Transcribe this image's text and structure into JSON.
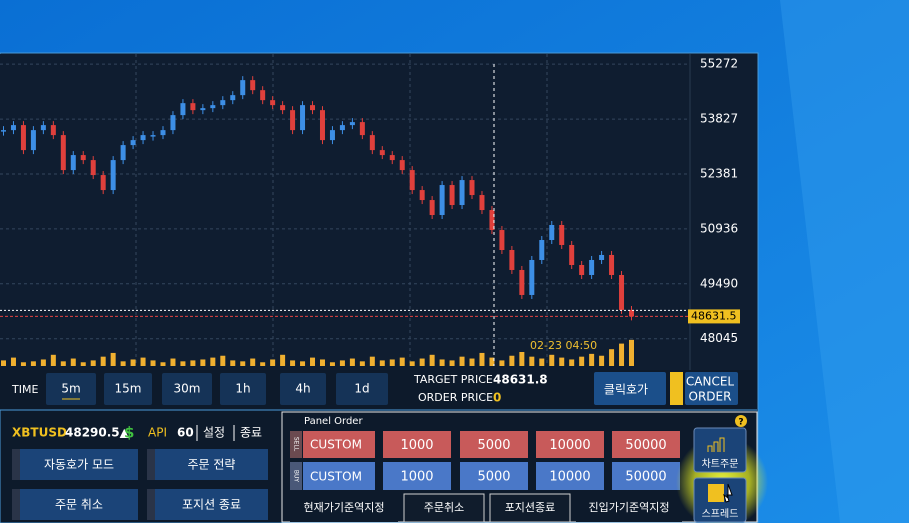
{
  "chart_data": {
    "type": "candlestick",
    "closes": [
      53536,
      53668,
      53010,
      53536,
      53668,
      53405,
      52484,
      52879,
      52747,
      52353,
      51958,
      52747,
      53142,
      53273,
      53405,
      53405,
      53536,
      53931,
      54246,
      54062,
      54115,
      54194,
      54325,
      54457,
      54852,
      54588,
      54325,
      54194,
      54062,
      53536,
      54194,
      54062,
      53273,
      53536,
      53668,
      53747,
      53405,
      53010,
      52879,
      52747,
      52484,
      51958,
      51695,
      51301,
      52090,
      51564,
      52221,
      51827,
      51432,
      50906,
      50380,
      49854,
      49196,
      50117,
      50643,
      51038,
      50512,
      49985,
      49722,
      50117,
      50249,
      49722,
      48802,
      48631.5
    ],
    "volumes": [
      6,
      9,
      4,
      5,
      7,
      12,
      5,
      8,
      4,
      6,
      10,
      14,
      5,
      7,
      9,
      6,
      4,
      8,
      5,
      6,
      7,
      9,
      11,
      6,
      5,
      8,
      4,
      7,
      12,
      6,
      5,
      9,
      7,
      4,
      6,
      8,
      5,
      10,
      6,
      7,
      9,
      5,
      8,
      12,
      7,
      6,
      10,
      8,
      14,
      9,
      6,
      11,
      15,
      10,
      8,
      12,
      9,
      7,
      10,
      13,
      11,
      18,
      24,
      28
    ],
    "vlim": [
      0,
      30
    ],
    "ylim": [
      47800,
      55540
    ],
    "yticks": [
      55272,
      53827,
      52381,
      50936,
      49490,
      48045
    ],
    "last_price": 48631.5,
    "crosshair_time": "02-23 04:50",
    "up_color": "#3d8fe6",
    "down_color": "#e0403c",
    "volume_color": "#f0b030",
    "grid": true
  },
  "toolbar": {
    "time_label": "TIME",
    "intervals": [
      "5m",
      "15m",
      "30m",
      "1h",
      "4h",
      "1d"
    ],
    "target_price_label": "TARGET PRICE",
    "target_price": 48631.8,
    "order_price_label": "ORDER PRICE",
    "order_price": 0,
    "click_button": "클릭호가",
    "cancel_button": [
      "CANCEL",
      "ORDER"
    ]
  },
  "status": {
    "symbol": "XBTUSD",
    "symbol_price": "48290.5▲",
    "currency_icon": "$",
    "api_label": "API",
    "api_value": 60,
    "settings": "설정",
    "exit": "종료",
    "buttons": [
      "자동호가 모드",
      "주문 전략",
      "주문 취소",
      "포지션 종료"
    ]
  },
  "order_panel": {
    "title": "Panel Order",
    "sell_tab": "SELL",
    "buy_tab": "BUY",
    "sell_custom": "CUSTOM",
    "buy_custom": "CUSTOM",
    "sell_amounts": [
      1000,
      5000,
      10000,
      50000
    ],
    "buy_amounts": [
      1000,
      5000,
      10000,
      50000
    ],
    "bottom_buttons": [
      "현재가기준역지정",
      "주문취소",
      "포지션종료",
      "진입가기준역지정"
    ],
    "help": "?",
    "side_buttons": [
      "차트주문",
      "스프레드"
    ]
  }
}
